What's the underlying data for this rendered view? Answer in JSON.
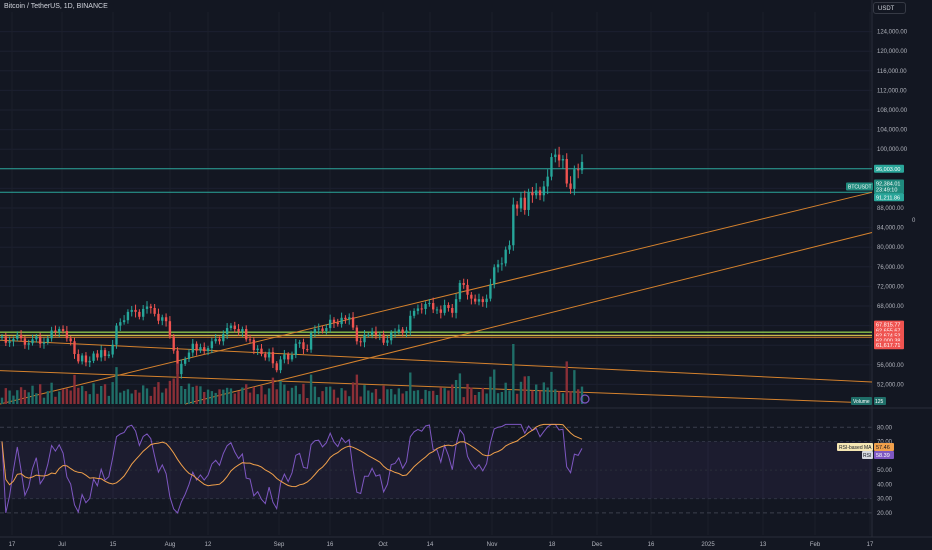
{
  "header": {
    "symbol_line": "Bitcoin / TetherUS, 1D, BINANCE",
    "currency": "USDT",
    "side_zero": "0"
  },
  "colors": {
    "background": "#131722",
    "up": "#26a69a",
    "down": "#ef5350",
    "up_volume": "#1f6e68",
    "down_volume": "#8b2f37",
    "trendline": "#d5822d",
    "horizontal_cyan": "#2aa69a",
    "horizontal_yellow": "#c9b94b",
    "horizontal_green": "#8bc34a",
    "rsi_line": "#7e57c2",
    "rsi_ma": "#f0a04b"
  },
  "chart_data": [
    {
      "type": "candlestick",
      "title": "Bitcoin / TetherUS, 1D, BINANCE",
      "ylim": [
        48000,
        128000
      ],
      "y_ticks": [
        52000,
        56000,
        60000,
        64000,
        68000,
        72000,
        76000,
        80000,
        84000,
        88000,
        92000,
        96000,
        100000,
        104000,
        108000,
        112000,
        116000,
        120000,
        124000
      ],
      "y_tick_labels": [
        "52,000.00",
        "56,000.00",
        "60,000.00",
        "64,000.00",
        "68,000.00",
        "72,000.00",
        "76,000.00",
        "80,000.00",
        "84,000.00",
        "88,000.00",
        "92,000.00",
        "96,000.00",
        "100,000.00",
        "104,000.00",
        "108,000.00",
        "112,000.00",
        "116,000.00",
        "120,000.00",
        "124,000.00"
      ],
      "x_tick_labels": [
        "17",
        "Jul",
        "15",
        "Aug",
        "12",
        "Sep",
        "16",
        "Oct",
        "14",
        "Nov",
        "18",
        "Dec",
        "16",
        "2025",
        "13",
        "Feb",
        "17"
      ],
      "closes": [
        61800,
        60500,
        60800,
        61300,
        62100,
        61400,
        60100,
        60400,
        61200,
        61800,
        60300,
        60600,
        61400,
        63000,
        62700,
        63300,
        62900,
        61400,
        60800,
        58200,
        56700,
        57900,
        56500,
        56800,
        58300,
        57500,
        59000,
        57800,
        58100,
        60100,
        64000,
        64700,
        65100,
        66800,
        67200,
        66800,
        65800,
        67400,
        67900,
        67600,
        66400,
        65000,
        65700,
        64900,
        61800,
        58900,
        54100,
        56200,
        57200,
        58500,
        60300,
        58900,
        59600,
        58800,
        59400,
        60800,
        61300,
        60800,
        62300,
        63500,
        64000,
        63300,
        62800,
        63300,
        61200,
        61100,
        59000,
        59300,
        58200,
        57500,
        58600,
        56300,
        54900,
        57100,
        58100,
        57100,
        58000,
        60300,
        60600,
        59200,
        59100,
        62500,
        63300,
        63400,
        62900,
        63500,
        65200,
        64600,
        64300,
        65600,
        65300,
        65700,
        63600,
        60800,
        60600,
        62100,
        62100,
        62800,
        62100,
        62200,
        60500,
        61000,
        62600,
        62700,
        63200,
        62500,
        63000,
        66000,
        67000,
        67500,
        67400,
        68400,
        68600,
        67300,
        67300,
        66600,
        68200,
        67600,
        66600,
        69400,
        72700,
        72300,
        70300,
        69500,
        68900,
        69400,
        68800,
        69500,
        72400,
        75900,
        76500,
        76700,
        79500,
        80400,
        88700,
        87900,
        90100,
        87600,
        91200,
        90600,
        91600,
        90600,
        92400,
        94400,
        98400,
        98900,
        97700,
        98000,
        93000,
        91900,
        95900,
        95700,
        97400
      ],
      "price_labels": [
        "96,003.00",
        "92,384.01",
        "91,211.86",
        "67,815.77",
        "62,655.67",
        "62,674.52",
        "62,000.38",
        "61,617.71"
      ],
      "current_symbol": "BTCUSDT",
      "current_price": "92,384.01",
      "countdown": "23:49:10",
      "volume_label": "Volume",
      "volume_value": "125",
      "rsi": {
        "ylim": [
          15,
          90
        ],
        "y_ticks": [
          20,
          30,
          40,
          50,
          60,
          70,
          80
        ],
        "y_tick_labels": [
          "20.00",
          "30.00",
          "40.00",
          "50.00",
          "60.00",
          "70.00",
          "80.00"
        ],
        "bands": [
          30,
          70,
          80,
          20
        ],
        "ma_label": "RSI-based MA",
        "ma_value": "57.46",
        "rsi_label": "RSI",
        "rsi_value": "58.39"
      }
    }
  ]
}
